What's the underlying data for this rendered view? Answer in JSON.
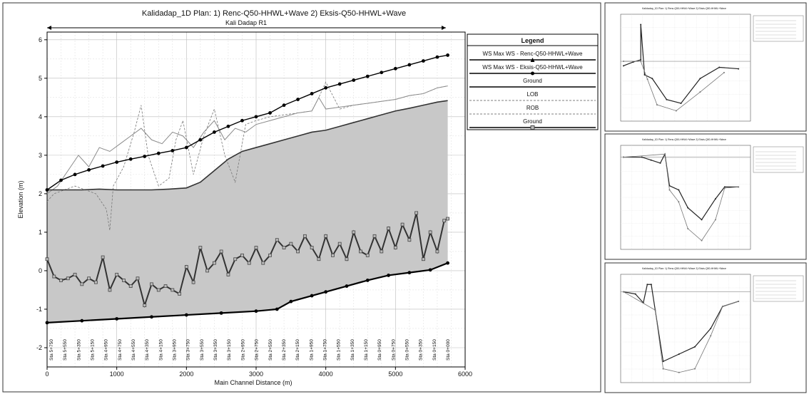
{
  "main": {
    "title": "Kalidadap_1D      Plan:   1) Renc-Q50-HHWL+Wave    2) Eksis-Q50-HHWL+Wave",
    "reach_label": "Kali Dadap R1",
    "chart_data": {
      "type": "line",
      "xlabel": "Main Channel Distance (m)",
      "ylabel": "Elevation (m)",
      "xlim": [
        0,
        6000
      ],
      "ylim": [
        -2.5,
        6.2
      ],
      "x_ticks": [
        0,
        1000,
        2000,
        3000,
        4000,
        5000,
        6000
      ],
      "y_ticks": [
        -2,
        -1,
        0,
        1,
        2,
        3,
        4,
        5,
        6
      ],
      "grid": true,
      "legend_position": "right",
      "legend_title": "Legend",
      "legend": [
        {
          "label": "WS  Max WS - Renc-Q50-HHWL+Wave",
          "color": "#000000",
          "marker": "triangle"
        },
        {
          "label": "WS  Max WS - Eksis-Q50-HHWL+Wave",
          "color": "#000000",
          "marker": "circle"
        },
        {
          "label": "Ground",
          "color": "#000000",
          "marker": "none"
        },
        {
          "label": "LOB",
          "color": "#555555",
          "marker": "dash"
        },
        {
          "label": "ROB",
          "color": "#555555",
          "marker": "dash"
        },
        {
          "label": "Ground",
          "color": "#000000",
          "marker": "square"
        }
      ],
      "station_labels": [
        "Sta 5+750",
        "Sta 5+550",
        "Sta 5+350",
        "Sta 5+150",
        "Sta 4+950",
        "Sta 4+750",
        "Sta 4+550",
        "Sta 4+350",
        "Sta 4+150",
        "Sta 3+950",
        "Sta 3+750",
        "Sta 3+550",
        "Sta 3+350",
        "Sta 3+150",
        "Sta 2+950",
        "Sta 2+750",
        "Sta 2+550",
        "Sta 2+350",
        "Sta 2+150",
        "Sta 1+950",
        "Sta 1+750",
        "Sta 1+550",
        "Sta 1+350",
        "Sta 1+150",
        "Sta 0+950",
        "Sta 0+750",
        "Sta 0+550",
        "Sta 0+350",
        "Sta 0+150",
        "Sta 0+000"
      ],
      "series": [
        {
          "name": "WS  Max WS - Renc-Q50-HHWL+Wave",
          "style": "solid-markers",
          "x": [
            0,
            200,
            400,
            600,
            800,
            1000,
            1200,
            1400,
            1600,
            1800,
            2000,
            2200,
            2400,
            2600,
            2800,
            3000,
            3200,
            3400,
            3600,
            3800,
            4000,
            4200,
            4400,
            4600,
            4800,
            5000,
            5200,
            5400,
            5600,
            5750
          ],
          "y": [
            2.1,
            2.35,
            2.5,
            2.62,
            2.72,
            2.82,
            2.9,
            2.97,
            3.05,
            3.12,
            3.2,
            3.4,
            3.6,
            3.75,
            3.9,
            4.0,
            4.1,
            4.3,
            4.45,
            4.6,
            4.75,
            4.85,
            4.95,
            5.05,
            5.15,
            5.25,
            5.35,
            5.45,
            5.55,
            5.6
          ]
        },
        {
          "name": "Max WS - Eksis-Q50-HHWL+Wave",
          "style": "thin",
          "x": [
            0,
            150,
            300,
            450,
            600,
            750,
            900,
            1050,
            1200,
            1350,
            1500,
            1650,
            1800,
            1950,
            2100,
            2250,
            2400,
            2550,
            2700,
            2850,
            3000,
            3200,
            3400,
            3600,
            3800,
            3900,
            4000,
            4200,
            4400,
            4600,
            4800,
            5000,
            5200,
            5400,
            5600,
            5750
          ],
          "y": [
            2.0,
            2.2,
            2.6,
            3.0,
            2.7,
            3.2,
            3.1,
            3.3,
            3.5,
            3.7,
            3.4,
            3.3,
            3.6,
            3.5,
            3.2,
            3.6,
            3.9,
            3.4,
            3.7,
            3.6,
            3.8,
            3.9,
            4.0,
            4.1,
            4.15,
            4.5,
            4.2,
            4.25,
            4.3,
            4.35,
            4.4,
            4.45,
            4.55,
            4.6,
            4.75,
            4.8
          ]
        },
        {
          "name": "Ground",
          "style": "thick",
          "x": [
            0,
            250,
            500,
            750,
            1000,
            1250,
            1500,
            1750,
            2000,
            2200,
            2400,
            2600,
            2800,
            3000,
            3200,
            3400,
            3600,
            3800,
            4000,
            4200,
            4400,
            4600,
            4800,
            5000,
            5200,
            5400,
            5600,
            5750
          ],
          "y": [
            2.1,
            2.1,
            2.1,
            2.12,
            2.1,
            2.1,
            2.1,
            2.12,
            2.15,
            2.3,
            2.6,
            2.9,
            3.1,
            3.2,
            3.3,
            3.4,
            3.5,
            3.6,
            3.65,
            3.75,
            3.85,
            3.95,
            4.05,
            4.15,
            4.22,
            4.3,
            4.38,
            4.42
          ]
        },
        {
          "name": "LOB",
          "style": "dashed",
          "x": [
            0,
            100,
            250,
            400,
            550,
            700,
            850,
            900,
            950,
            1100,
            1250,
            1350,
            1450,
            1600,
            1750,
            1850,
            1950,
            2100,
            2250,
            2400,
            2550,
            2700,
            2850,
            3000,
            3200,
            3400,
            3600,
            3800,
            3900,
            4000,
            4200,
            4400,
            4600,
            4800,
            5000,
            5200,
            5400,
            5600,
            5750
          ],
          "y": [
            1.8,
            2.0,
            2.1,
            2.2,
            2.1,
            2.0,
            1.6,
            1.05,
            2.2,
            2.7,
            3.6,
            4.3,
            3.0,
            2.2,
            2.4,
            3.4,
            3.9,
            2.5,
            3.5,
            4.2,
            3.0,
            2.3,
            3.8,
            3.9,
            4.0,
            4.05,
            4.1,
            4.15,
            4.5,
            4.9,
            4.2,
            4.3,
            4.35,
            4.4,
            4.45,
            4.55,
            4.6,
            4.75,
            4.8
          ]
        },
        {
          "name": "Ground",
          "style": "thick-square-markers",
          "x": [
            0,
            100,
            200,
            300,
            400,
            500,
            600,
            700,
            800,
            900,
            1000,
            1100,
            1200,
            1300,
            1400,
            1500,
            1600,
            1700,
            1800,
            1900,
            2000,
            2100,
            2200,
            2300,
            2400,
            2500,
            2600,
            2700,
            2800,
            2900,
            3000,
            3100,
            3200,
            3300,
            3400,
            3500,
            3600,
            3700,
            3800,
            3900,
            4000,
            4100,
            4200,
            4300,
            4400,
            4500,
            4600,
            4700,
            4800,
            4900,
            5000,
            5100,
            5200,
            5300,
            5400,
            5500,
            5600,
            5700,
            5750
          ],
          "y": [
            0.3,
            -0.15,
            -0.25,
            -0.2,
            -0.1,
            -0.35,
            -0.2,
            -0.3,
            0.35,
            -0.5,
            -0.1,
            -0.25,
            -0.4,
            -0.2,
            -0.9,
            -0.35,
            -0.5,
            -0.4,
            -0.5,
            -0.6,
            0.1,
            -0.3,
            0.6,
            0.0,
            0.2,
            0.5,
            -0.1,
            0.3,
            0.4,
            0.2,
            0.6,
            0.2,
            0.4,
            0.8,
            0.6,
            0.7,
            0.5,
            0.9,
            0.6,
            0.3,
            0.9,
            0.4,
            0.7,
            0.3,
            1.0,
            0.5,
            0.4,
            0.9,
            0.5,
            1.1,
            0.6,
            1.2,
            0.8,
            1.5,
            0.3,
            1.0,
            0.5,
            1.3,
            1.35
          ]
        },
        {
          "name": "Ground",
          "style": "thick-circle-markers",
          "x": [
            0,
            500,
            1000,
            1500,
            2000,
            2500,
            3000,
            3300,
            3500,
            3800,
            4000,
            4300,
            4600,
            4900,
            5200,
            5500,
            5750
          ],
          "y": [
            -1.35,
            -1.3,
            -1.25,
            -1.2,
            -1.15,
            -1.1,
            -1.05,
            -1.0,
            -0.8,
            -0.65,
            -0.55,
            -0.4,
            -0.25,
            -0.12,
            -0.05,
            0.02,
            0.2
          ]
        }
      ]
    }
  },
  "thumbnails": [
    {
      "name": "cross-section-1",
      "title": "Kalidadap_1D   Plan: 1) Renc-Q50-HHWL+Wave  2) Eksis-Q50-HHWL+Wave",
      "series": [
        {
          "x": [
            0,
            10,
            18,
            18,
            22,
            30,
            45,
            60,
            80,
            100,
            120
          ],
          "y": [
            4.0,
            4.5,
            4.8,
            9.5,
            2.8,
            2.3,
            -0.5,
            -1.0,
            2.3,
            3.8,
            3.6
          ]
        },
        {
          "x": [
            0,
            18,
            25,
            35,
            55,
            80,
            105
          ],
          "y": [
            4.6,
            4.6,
            2.2,
            -1.2,
            -2.0,
            0.5,
            3.1
          ]
        }
      ]
    },
    {
      "name": "cross-section-2",
      "title": "Kalidadap_1D   Plan: 1) Renc-Q50-HHWL+Wave  2) Eksis-Q50-HHWL+Wave",
      "series": [
        {
          "x": [
            0,
            20,
            30,
            40,
            45,
            50,
            60,
            70,
            85,
            100,
            110,
            125
          ],
          "y": [
            6.0,
            6.0,
            5.5,
            5.0,
            6.5,
            1.2,
            0.5,
            -2.5,
            -4.5,
            -1.0,
            1.0,
            1.0
          ]
        },
        {
          "x": [
            0,
            45,
            50,
            60,
            70,
            85,
            100,
            110,
            125
          ],
          "y": [
            6.0,
            6.5,
            0.5,
            -1.5,
            -6.0,
            -8.0,
            -4.5,
            0.8,
            1.0
          ]
        }
      ]
    },
    {
      "name": "cross-section-3",
      "title": "Kalidadap_1D   Plan: 1) Renc-Q50-HHWL+Wave  2) Eksis-Q50-HHWL+Wave",
      "series": [
        {
          "x": [
            0,
            15,
            25,
            30,
            35,
            40,
            50,
            70,
            90,
            110,
            125,
            145
          ],
          "y": [
            4.5,
            4.2,
            3.0,
            5.5,
            5.5,
            2.0,
            -5.0,
            -4.0,
            -3.0,
            -0.5,
            2.5,
            3.2
          ]
        },
        {
          "x": [
            0,
            40,
            50,
            70,
            90,
            110,
            125,
            145
          ],
          "y": [
            4.5,
            2.0,
            -6.0,
            -6.5,
            -6.0,
            -1.5,
            2.5,
            3.2
          ]
        }
      ]
    }
  ]
}
